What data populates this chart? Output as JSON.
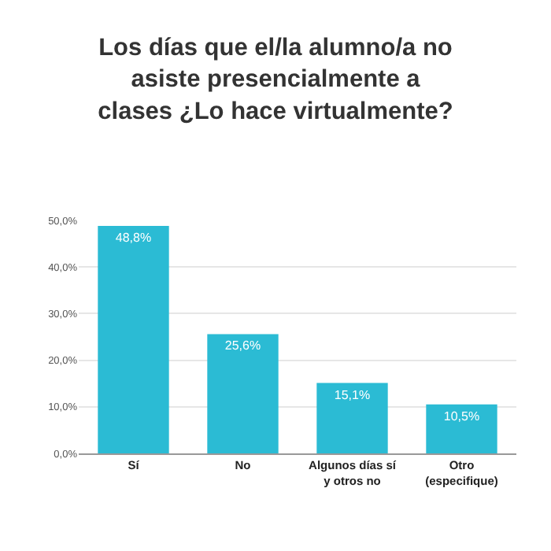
{
  "chart_data": {
    "type": "bar",
    "title": "Los días que el/la alumno/a no asiste presencialmente a clases ¿Lo hace virtualmente?",
    "categories": [
      "Sí",
      "No",
      "Algunos días sí y otros no",
      "Otro (especifique)"
    ],
    "values": [
      48.8,
      25.6,
      15.1,
      10.5
    ],
    "value_labels": [
      "48,8%",
      "25,6%",
      "15,1%",
      "10,5%"
    ],
    "color": "#2bbbd4",
    "ylim": [
      0,
      50
    ],
    "yticks": [
      {
        "value": 0,
        "label": "0,0%"
      },
      {
        "value": 10,
        "label": "10,0%"
      },
      {
        "value": 20,
        "label": "20,0%"
      },
      {
        "value": 30,
        "label": "30,0%"
      },
      {
        "value": 40,
        "label": "40,0%"
      },
      {
        "value": 50,
        "label": "50,0%"
      }
    ],
    "grid": "y",
    "legend": false
  }
}
